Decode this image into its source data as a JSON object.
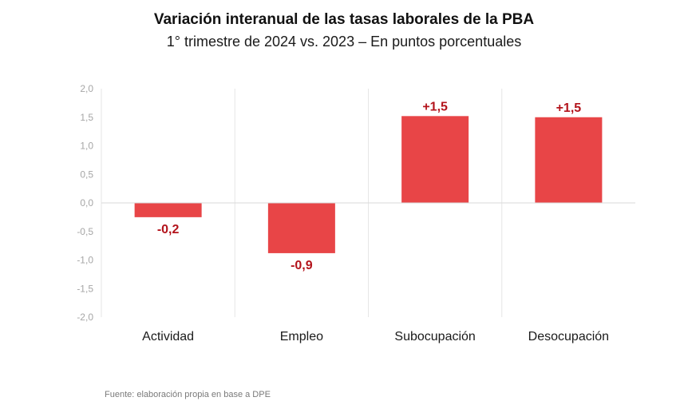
{
  "chart_data": {
    "type": "bar",
    "title": "Variación interanual de las tasas laborales de la PBA",
    "subtitle": "1° trimestre de 2024 vs. 2023 – En puntos porcentuales",
    "xlabel": "",
    "ylabel": "",
    "categories": [
      "Actividad",
      "Empleo",
      "Subocupación",
      "Desocupación"
    ],
    "values": [
      -0.25,
      -0.88,
      1.52,
      1.5
    ],
    "data_labels": [
      "-0,2",
      "-0,9",
      "+1,5",
      "+1,5"
    ],
    "ylim": [
      -2.0,
      2.0
    ],
    "yticks": [
      2.0,
      1.5,
      1.0,
      0.5,
      0.0,
      -0.5,
      -1.0,
      -1.5,
      -2.0
    ],
    "ytick_labels": [
      "2,0",
      "1,5",
      "1,0",
      "0,5",
      "0,0",
      "-0,5",
      "-1,0",
      "-1,5",
      "-2,0"
    ],
    "grid": "vertical separators between categories",
    "legend": "none",
    "colors": {
      "bar": "#e84547",
      "data_label": "#b3131b",
      "zero_line": "#d9d9d9",
      "separator": "#e6e6e6",
      "tick_label": "#a6a6a6"
    }
  },
  "footer": {
    "source": "Fuente: elaboración propia en base a DPE"
  }
}
